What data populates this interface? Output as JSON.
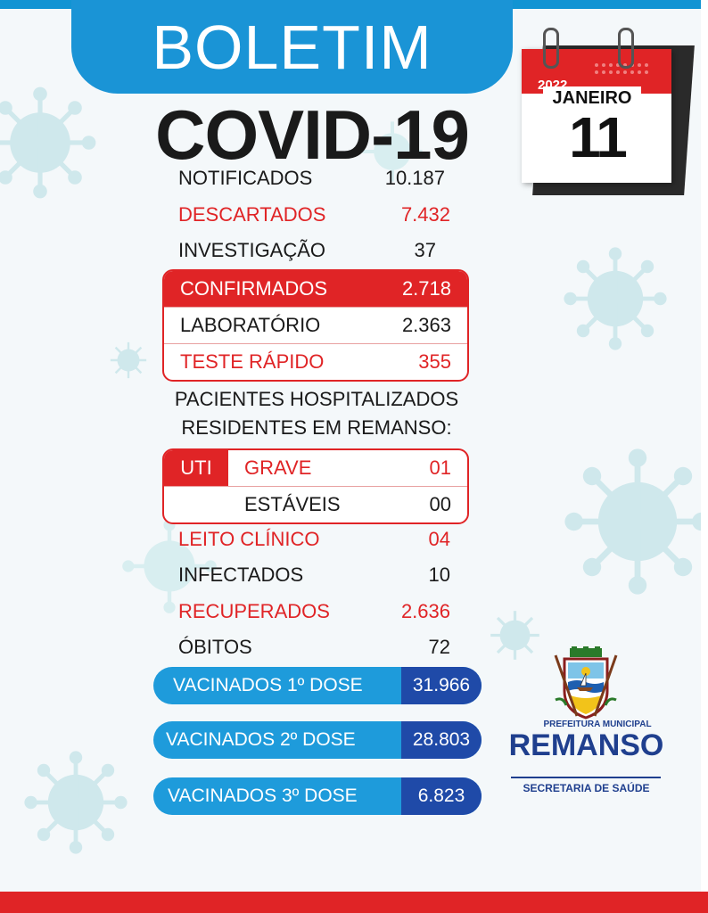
{
  "header": {
    "boletim": "BOLETIM",
    "title": "COVID-19"
  },
  "calendar": {
    "year": "2022",
    "month": "JANEIRO",
    "day": "11"
  },
  "stats": {
    "notificados": {
      "label": "NOTIFICADOS",
      "value": "10.187"
    },
    "descartados": {
      "label": "DESCARTADOS",
      "value": "7.432"
    },
    "investigacao": {
      "label": "INVESTIGAÇÃO",
      "value": "37"
    }
  },
  "confirmados_box": {
    "confirmados": {
      "label": "CONFIRMADOS",
      "value": "2.718"
    },
    "laboratorio": {
      "label": "LABORATÓRIO",
      "value": "2.363"
    },
    "teste_rapido": {
      "label": "TESTE RÁPIDO",
      "value": "355"
    }
  },
  "hospitalizados": {
    "title_line1": "PACIENTES HOSPITALIZADOS",
    "title_line2": "RESIDENTES EM REMANSO:",
    "uti": "UTI",
    "grave": {
      "label": "GRAVE",
      "value": "01"
    },
    "estaveis": {
      "label": "ESTÁVEIS",
      "value": "00"
    }
  },
  "other_stats": {
    "leito_clinico": {
      "label": "LEITO CLÍNICO",
      "value": "04"
    },
    "infectados": {
      "label": "INFECTADOS",
      "value": "10"
    },
    "recuperados": {
      "label": "RECUPERADOS",
      "value": "2.636"
    },
    "obitos": {
      "label": "ÓBITOS",
      "value": "72"
    }
  },
  "vaccines": [
    {
      "label": "VACINADOS 1º DOSE",
      "value": "31.966"
    },
    {
      "label": "VACINADOS 2º DOSE",
      "value": "28.803"
    },
    {
      "label": "VACINADOS 3º DOSE",
      "value": "6.823"
    }
  ],
  "logo": {
    "prefeitura": "PREFEITURA MUNICIPAL",
    "remanso": "REMANSO",
    "secretaria": "SECRETARIA DE SAÚDE"
  },
  "colors": {
    "red": "#e02426",
    "blue": "#1a94d6",
    "dark_blue": "#1f4aa8",
    "navy": "#1f3f8e"
  },
  "icons": [
    "virus-icon",
    "calendar-icon",
    "coat-of-arms-icon"
  ]
}
